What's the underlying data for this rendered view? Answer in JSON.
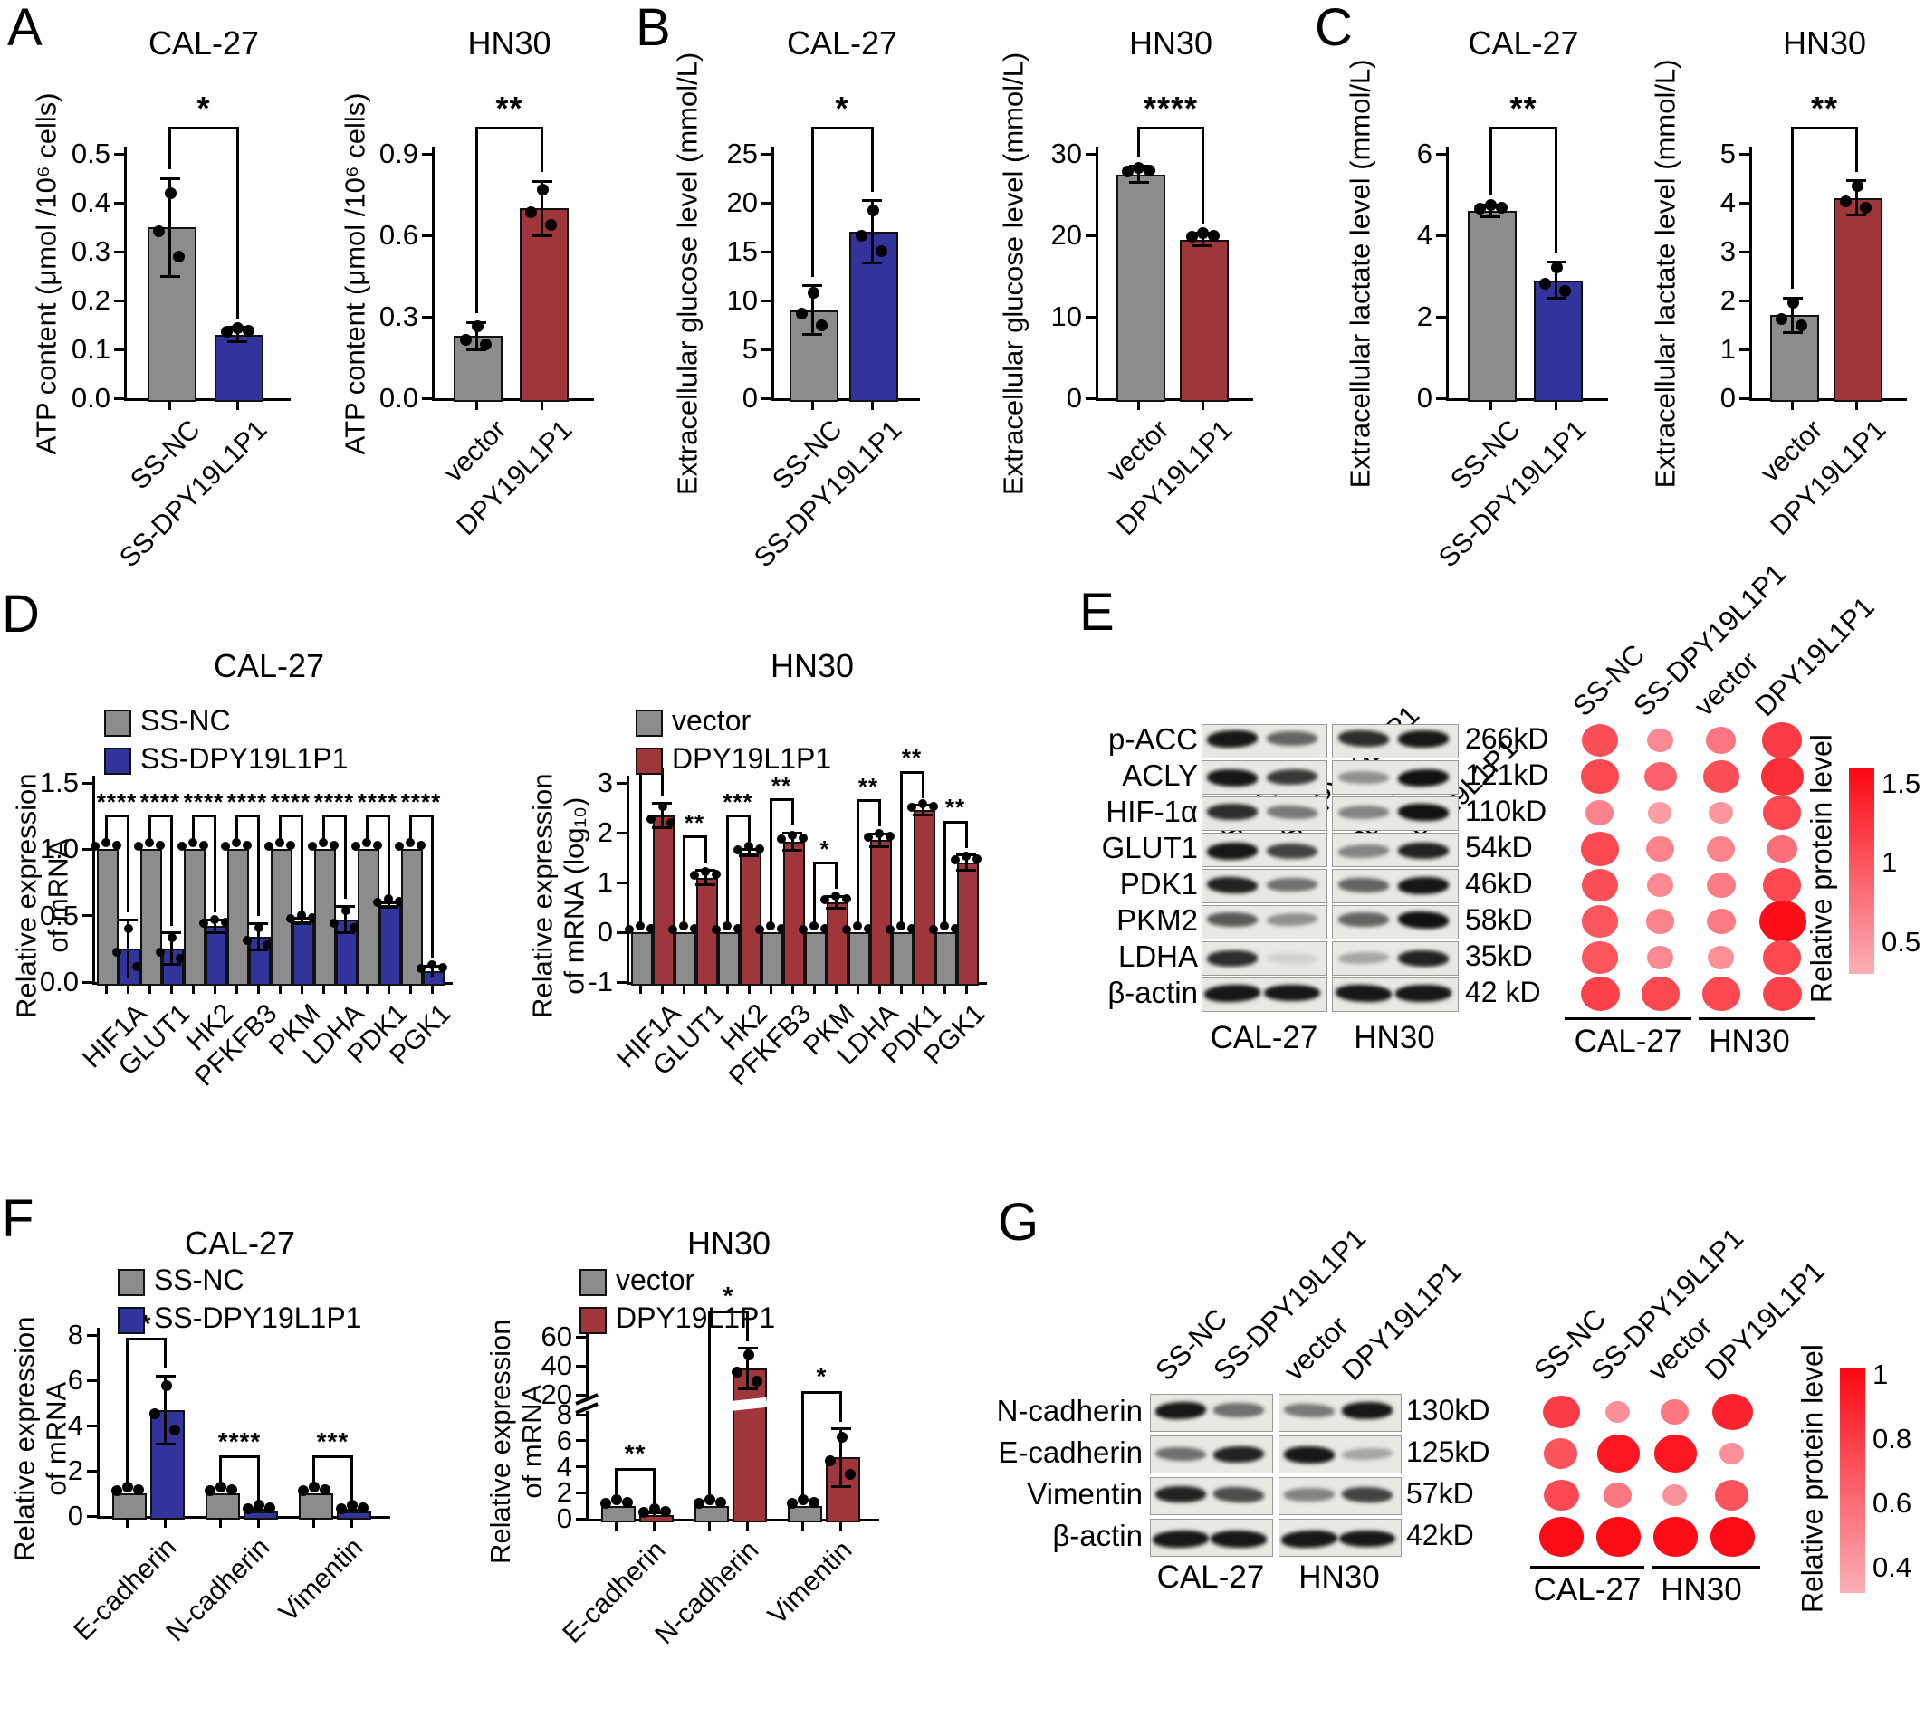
{
  "colors": {
    "gray": "#8C8C8C",
    "blue": "#33349B",
    "red": "#9E363C",
    "band": "#151515",
    "dot_low": "#FBB0B7",
    "dot_high": "#FB0712"
  },
  "panel_letters": {
    "A": "A",
    "B": "B",
    "C": "C",
    "D": "D",
    "E": "E",
    "F": "F",
    "G": "G"
  },
  "chart_data": [
    {
      "id": "A1",
      "type": "bar",
      "title": "CAL-27",
      "ylabel": "ATP content (μmol /10⁶ cells)",
      "ylim": [
        0,
        0.5
      ],
      "yticks": [
        [
          0,
          "0.0"
        ],
        [
          0.1,
          "0.1"
        ],
        [
          0.2,
          "0.2"
        ],
        [
          0.3,
          "0.3"
        ],
        [
          0.4,
          "0.4"
        ],
        [
          0.5,
          "0.5"
        ]
      ],
      "bars": [
        {
          "label": "SS-NC",
          "value": 0.35,
          "err": 0.1,
          "color": "gray"
        },
        {
          "label": "SS-DPY19L1P1",
          "value": 0.13,
          "err": 0.015,
          "color": "blue"
        }
      ],
      "sig": "*"
    },
    {
      "id": "A2",
      "type": "bar",
      "title": "HN30",
      "ylabel": "ATP content (μmol /10⁶ cells)",
      "ylim": [
        0,
        0.9
      ],
      "yticks": [
        [
          0,
          "0.0"
        ],
        [
          0.3,
          "0.3"
        ],
        [
          0.6,
          "0.6"
        ],
        [
          0.9,
          "0.9"
        ]
      ],
      "bars": [
        {
          "label": "vector",
          "value": 0.23,
          "err": 0.05,
          "color": "gray"
        },
        {
          "label": "DPY19L1P1",
          "value": 0.7,
          "err": 0.1,
          "color": "red"
        }
      ],
      "sig": "**"
    },
    {
      "id": "B1",
      "type": "bar",
      "title": "CAL-27",
      "ylabel": "Extracellular glucose level (mmol/L)",
      "ylim": [
        0,
        25
      ],
      "yticks": [
        [
          0,
          "0"
        ],
        [
          5,
          "5"
        ],
        [
          10,
          "10"
        ],
        [
          15,
          "15"
        ],
        [
          20,
          "20"
        ],
        [
          25,
          "25"
        ]
      ],
      "bars": [
        {
          "label": "SS-NC",
          "value": 9,
          "err": 2.5,
          "color": "gray"
        },
        {
          "label": "SS-DPY19L1P1",
          "value": 17,
          "err": 3.2,
          "color": "blue"
        }
      ],
      "sig": "*"
    },
    {
      "id": "B2",
      "type": "bar",
      "title": "HN30",
      "ylabel": "Extracellular glucose level (mmol/L)",
      "ylim": [
        0,
        30
      ],
      "yticks": [
        [
          0,
          "0"
        ],
        [
          10,
          "10"
        ],
        [
          20,
          "20"
        ],
        [
          30,
          "30"
        ]
      ],
      "bars": [
        {
          "label": "vector",
          "value": 27.5,
          "err": 1.0,
          "color": "gray"
        },
        {
          "label": "DPY19L1P1",
          "value": 19.5,
          "err": 0.8,
          "color": "red"
        }
      ],
      "sig": "****"
    },
    {
      "id": "C1",
      "type": "bar",
      "title": "CAL-27",
      "ylabel": "Extracellular lactate level (mmol/L)",
      "ylim": [
        0,
        6
      ],
      "yticks": [
        [
          0,
          "0"
        ],
        [
          2,
          "2"
        ],
        [
          4,
          "4"
        ],
        [
          6,
          "6"
        ]
      ],
      "bars": [
        {
          "label": "SS-NC",
          "value": 4.6,
          "err": 0.15,
          "color": "gray"
        },
        {
          "label": "SS-DPY19L1P1",
          "value": 2.9,
          "err": 0.45,
          "color": "blue"
        }
      ],
      "sig": "**"
    },
    {
      "id": "C2",
      "type": "bar",
      "title": "HN30",
      "ylabel": "Extracellular lactate level (mmol/L)",
      "ylim": [
        0,
        5
      ],
      "yticks": [
        [
          0,
          "0"
        ],
        [
          1,
          "1"
        ],
        [
          2,
          "2"
        ],
        [
          3,
          "3"
        ],
        [
          4,
          "4"
        ],
        [
          5,
          "5"
        ]
      ],
      "bars": [
        {
          "label": "vector",
          "value": 1.7,
          "err": 0.35,
          "color": "gray"
        },
        {
          "label": "DPY19L1P1",
          "value": 4.1,
          "err": 0.35,
          "color": "red"
        }
      ],
      "sig": "**"
    },
    {
      "id": "D1",
      "type": "grouped",
      "title": "CAL-27",
      "ylabel": "Relative expression\nof mRNA",
      "ylim": [
        0,
        1.5
      ],
      "yticks": [
        [
          0,
          "0.0"
        ],
        [
          0.5,
          "0.5"
        ],
        [
          1,
          "1.0"
        ],
        [
          1.5,
          "1.5"
        ]
      ],
      "categories": [
        "HIF1A",
        "GLUT1",
        "HK2",
        "PFKFB3",
        "PKM",
        "LDHA",
        "PDK1",
        "PGK1"
      ],
      "series": [
        {
          "name": "SS-NC",
          "color": "gray",
          "values": [
            1,
            1,
            1,
            1,
            1,
            1,
            1,
            1
          ],
          "errors": [
            0,
            0,
            0,
            0,
            0,
            0,
            0,
            0
          ]
        },
        {
          "name": "SS-DPY19L1P1",
          "color": "blue",
          "values": [
            0.25,
            0.25,
            0.42,
            0.34,
            0.46,
            0.47,
            0.58,
            0.08
          ],
          "errors": [
            0.22,
            0.12,
            0.05,
            0.1,
            0.02,
            0.1,
            0.02,
            0.04
          ]
        }
      ],
      "sigs": [
        "****",
        "****",
        "****",
        "****",
        "****",
        "****",
        "****",
        "****"
      ]
    },
    {
      "id": "D2",
      "type": "grouped",
      "title": "HN30",
      "ylabel": "Relative expression\nof mRNA (log₁₀)",
      "ylim": [
        -1,
        3
      ],
      "baseline": -1,
      "yticks": [
        [
          -1,
          "-1"
        ],
        [
          0,
          "0"
        ],
        [
          1,
          "1"
        ],
        [
          2,
          "2"
        ],
        [
          3,
          "3"
        ]
      ],
      "categories": [
        "HIF1A",
        "GLUT1",
        "HK2",
        "PFKFB3",
        "PKM",
        "LDHA",
        "PDK1",
        "PGK1"
      ],
      "series": [
        {
          "name": "vector",
          "color": "gray",
          "values": [
            0,
            0,
            0,
            0,
            0,
            0,
            0,
            0
          ],
          "errors": [
            0,
            0,
            0,
            0,
            0,
            0,
            0,
            0
          ]
        },
        {
          "name": "DPY19L1P1",
          "color": "red",
          "values": [
            2.35,
            1.1,
            1.6,
            1.82,
            0.6,
            1.85,
            2.45,
            1.4
          ],
          "errors": [
            0.25,
            0.15,
            0.07,
            0.18,
            0.12,
            0.13,
            0.1,
            0.15
          ]
        }
      ],
      "sigs": [
        "*",
        "**",
        "***",
        "**",
        "*",
        "**",
        "**",
        "**"
      ]
    },
    {
      "id": "F1",
      "type": "grouped",
      "title": "CAL-27",
      "ylabel": "Relative expression\nof mRNA",
      "ylim": [
        0,
        8
      ],
      "yticks": [
        [
          0,
          "0"
        ],
        [
          2,
          "2"
        ],
        [
          4,
          "4"
        ],
        [
          6,
          "6"
        ],
        [
          8,
          "8"
        ]
      ],
      "categories": [
        "E-cadherin",
        "N-cadherin",
        "Vimentin"
      ],
      "series": [
        {
          "name": "SS-NC",
          "color": "gray",
          "values": [
            1,
            1,
            1
          ],
          "errors": [
            0,
            0,
            0
          ]
        },
        {
          "name": "SS-DPY19L1P1",
          "color": "blue",
          "values": [
            4.7,
            0.2,
            0.2
          ],
          "errors": [
            1.5,
            0.08,
            0.08
          ]
        }
      ],
      "sigs": [
        "*",
        "****",
        "***"
      ]
    },
    {
      "id": "F2",
      "type": "grouped",
      "title": "HN30",
      "ylabel": "Relative expression\nof mRNA",
      "ylim": [
        0,
        60
      ],
      "broken": {
        "low": 8,
        "high": 20
      },
      "yticks": [
        [
          0,
          "0"
        ],
        [
          2,
          "2"
        ],
        [
          4,
          "4"
        ],
        [
          6,
          "6"
        ],
        [
          8,
          "8"
        ],
        [
          20,
          "20"
        ],
        [
          40,
          "40"
        ],
        [
          60,
          "60"
        ]
      ],
      "categories": [
        "E-cadherin",
        "N-cadherin",
        "Vimentin"
      ],
      "series": [
        {
          "name": "vector",
          "color": "gray",
          "values": [
            1,
            1,
            1
          ],
          "errors": [
            0,
            0,
            0
          ]
        },
        {
          "name": "DPY19L1P1",
          "color": "red",
          "values": [
            0.3,
            38,
            4.7
          ],
          "errors": [
            0.12,
            14,
            2.2
          ]
        }
      ],
      "sigs": [
        "**",
        "*",
        "*"
      ]
    }
  ],
  "westerns": [
    {
      "id": "E",
      "lane_headers": [
        "SS-NC",
        "SS-DPY19L1P1",
        "vector",
        "DPY19L1P1"
      ],
      "group_labels": [
        "CAL-27",
        "HN30"
      ],
      "rows": [
        {
          "label": "p-ACC",
          "kd": "266kD",
          "bands": [
            0.95,
            0.6,
            0.85,
            0.95
          ]
        },
        {
          "label": "ACLY",
          "kd": "121kD",
          "bands": [
            0.95,
            0.8,
            0.4,
            0.98
          ]
        },
        {
          "label": "HIF-1α",
          "kd": "110kD",
          "bands": [
            0.85,
            0.5,
            0.45,
            0.98
          ]
        },
        {
          "label": "GLUT1",
          "kd": "54kD",
          "bands": [
            0.95,
            0.75,
            0.45,
            0.9
          ]
        },
        {
          "label": "PDK1",
          "kd": "46kD",
          "bands": [
            0.9,
            0.55,
            0.6,
            0.95
          ]
        },
        {
          "label": "PKM2",
          "kd": "58kD",
          "bands": [
            0.65,
            0.4,
            0.6,
            0.98
          ]
        },
        {
          "label": "LDHA",
          "kd": "35kD",
          "bands": [
            0.85,
            0.1,
            0.3,
            0.9
          ]
        },
        {
          "label": "β-actin",
          "kd": "42 kD",
          "bands": [
            0.95,
            0.95,
            0.95,
            0.95
          ]
        }
      ]
    },
    {
      "id": "G",
      "lane_headers": [
        "SS-NC",
        "SS-DPY19L1P1",
        "vector",
        "DPY19L1P1"
      ],
      "group_labels": [
        "CAL-27",
        "HN30"
      ],
      "rows": [
        {
          "label": "N-cadherin",
          "kd": "130kD",
          "bands": [
            0.95,
            0.55,
            0.5,
            0.95
          ]
        },
        {
          "label": "E-cadherin",
          "kd": "125kD",
          "bands": [
            0.55,
            0.9,
            0.95,
            0.3
          ]
        },
        {
          "label": "Vimentin",
          "kd": "57kD",
          "bands": [
            0.9,
            0.7,
            0.45,
            0.75
          ]
        },
        {
          "label": "β-actin",
          "kd": "42kD",
          "bands": [
            0.95,
            0.95,
            0.95,
            0.95
          ]
        }
      ]
    }
  ],
  "dotplots": [
    {
      "id": "E",
      "col_headers": [
        "SS-NC",
        "SS-DPY19L1P1",
        "vector",
        "DPY19L1P1"
      ],
      "group_labels": [
        "CAL-27",
        "HN30"
      ],
      "rows": [
        {
          "label": "p-ACC",
          "values": [
            1.05,
            0.6,
            0.75,
            1.2
          ]
        },
        {
          "label": "ACLY",
          "values": [
            1.1,
            0.9,
            1.05,
            1.3
          ]
        },
        {
          "label": "HIF-1α",
          "values": [
            0.65,
            0.45,
            0.5,
            1.1
          ]
        },
        {
          "label": "GLUT1",
          "values": [
            1.1,
            0.65,
            0.65,
            0.8
          ]
        },
        {
          "label": "PDK1",
          "values": [
            1.05,
            0.6,
            0.7,
            1.1
          ]
        },
        {
          "label": "PKM2",
          "values": [
            1.0,
            0.65,
            0.7,
            1.55
          ]
        },
        {
          "label": "LDHA",
          "values": [
            1.0,
            0.6,
            0.55,
            1.1
          ]
        },
        {
          "label": "β-actin",
          "values": [
            1.15,
            1.1,
            1.1,
            1.15
          ]
        }
      ],
      "colorbar": {
        "label": "Relative protein level",
        "ticks": [
          [
            1.5,
            "1.5"
          ],
          [
            1.0,
            "1"
          ],
          [
            0.5,
            "0.5"
          ]
        ],
        "vmin": 0.3,
        "vmax": 1.6
      }
    },
    {
      "id": "G",
      "col_headers": [
        "SS-NC",
        "SS-DPY19L1P1",
        "vector",
        "DPY19L1P1"
      ],
      "group_labels": [
        "CAL-27",
        "HN30"
      ],
      "rows": [
        {
          "label": "N-cadherin",
          "values": [
            0.8,
            0.45,
            0.55,
            0.9
          ]
        },
        {
          "label": "E-cadherin",
          "values": [
            0.7,
            0.95,
            0.95,
            0.45
          ]
        },
        {
          "label": "Vimentin",
          "values": [
            0.75,
            0.55,
            0.45,
            0.7
          ]
        },
        {
          "label": "β-actin",
          "values": [
            1.0,
            1.0,
            1.0,
            1.0
          ]
        }
      ],
      "colorbar": {
        "label": "Relative protein level",
        "ticks": [
          [
            1.0,
            "1"
          ],
          [
            0.8,
            "0.8"
          ],
          [
            0.6,
            "0.6"
          ],
          [
            0.4,
            "0.4"
          ]
        ],
        "vmin": 0.32,
        "vmax": 1.02
      }
    }
  ]
}
